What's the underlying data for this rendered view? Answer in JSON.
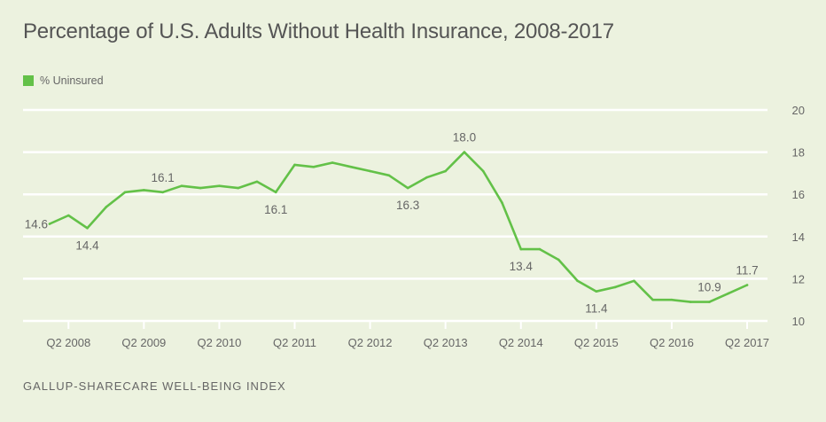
{
  "chart_data": {
    "type": "line",
    "title": "Percentage of U.S. Adults Without Health Insurance, 2008-2017",
    "source": "GALLUP-SHARECARE WELL-BEING INDEX",
    "xlabel": "",
    "ylabel": "",
    "ylim": [
      10,
      20
    ],
    "y_ticks": [
      10,
      12,
      14,
      16,
      18,
      20
    ],
    "grid": true,
    "legend_position": "top-left",
    "x_tick_labels": [
      {
        "label": "Q2 2008",
        "index": 1
      },
      {
        "label": "Q2 2009",
        "index": 5
      },
      {
        "label": "Q2 2010",
        "index": 9
      },
      {
        "label": "Q2 2011",
        "index": 13
      },
      {
        "label": "Q2 2012",
        "index": 17
      },
      {
        "label": "Q2 2013",
        "index": 21
      },
      {
        "label": "Q2 2014",
        "index": 25
      },
      {
        "label": "Q2 2015",
        "index": 29
      },
      {
        "label": "Q2 2016",
        "index": 33
      },
      {
        "label": "Q2 2017",
        "index": 37
      }
    ],
    "series": [
      {
        "name": "% Uninsured",
        "color": "#63c148",
        "values": [
          14.6,
          15.0,
          14.4,
          15.4,
          16.1,
          16.2,
          16.1,
          16.4,
          16.3,
          16.4,
          16.3,
          16.6,
          16.1,
          17.4,
          17.3,
          17.5,
          17.3,
          17.1,
          16.9,
          16.3,
          16.8,
          17.1,
          18.0,
          17.1,
          15.6,
          13.4,
          13.4,
          12.9,
          11.9,
          11.4,
          11.6,
          11.9,
          11.0,
          11.0,
          10.9,
          10.9,
          11.3,
          11.7
        ]
      }
    ],
    "annotations": [
      {
        "text": "14.6",
        "index": 0,
        "pos": "left"
      },
      {
        "text": "14.4",
        "index": 2,
        "pos": "below"
      },
      {
        "text": "16.1",
        "index": 6,
        "pos": "above"
      },
      {
        "text": "16.1",
        "index": 12,
        "pos": "below"
      },
      {
        "text": "16.3",
        "index": 19,
        "pos": "below"
      },
      {
        "text": "18.0",
        "index": 22,
        "pos": "above"
      },
      {
        "text": "13.4",
        "index": 25,
        "pos": "below"
      },
      {
        "text": "11.4",
        "index": 29,
        "pos": "below"
      },
      {
        "text": "10.9",
        "index": 35,
        "pos": "above"
      },
      {
        "text": "11.7",
        "index": 37,
        "pos": "above"
      }
    ]
  }
}
